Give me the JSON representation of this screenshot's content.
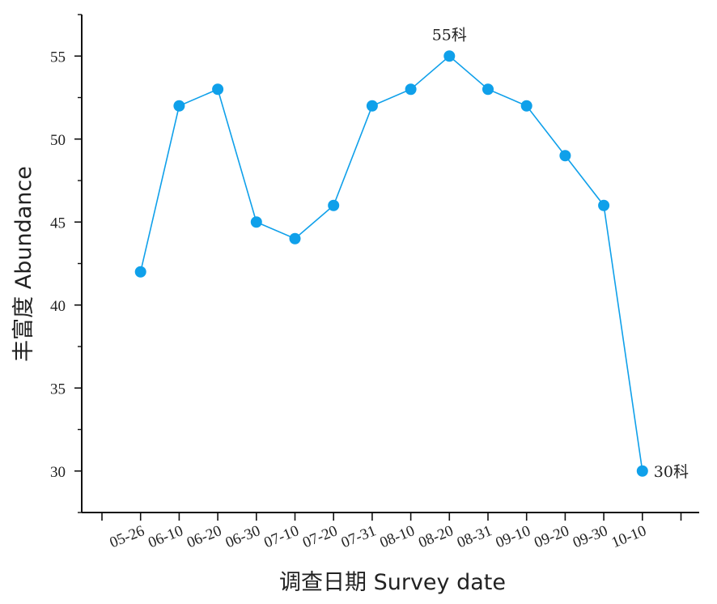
{
  "chart_data": {
    "type": "line",
    "categories": [
      "05-26",
      "06-10",
      "06-20",
      "06-30",
      "07-10",
      "07-20",
      "07-31",
      "08-10",
      "08-20",
      "08-31",
      "09-10",
      "09-20",
      "09-30",
      "10-10"
    ],
    "series": [
      {
        "values": [
          42,
          52,
          53,
          45,
          44,
          46,
          52,
          53,
          55,
          53,
          52,
          49,
          46,
          30
        ]
      }
    ],
    "xlabel": "调查日期  Survey date",
    "ylabel": "丰富度  Abundance",
    "ylim": [
      27.5,
      57.5
    ],
    "yticks": [
      30,
      35,
      40,
      45,
      50,
      55
    ],
    "annotations": [
      {
        "category": "08-20",
        "text": "55科",
        "position": "above"
      },
      {
        "category": "10-10",
        "text": "30科",
        "position": "right"
      }
    ],
    "grid": false,
    "colors": {
      "series": "#0fa0ea",
      "axis": "#111111"
    }
  }
}
